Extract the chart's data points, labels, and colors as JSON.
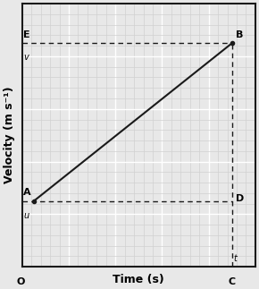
{
  "title": "",
  "xlabel": "Time (s)",
  "ylabel": "Velocity (m s⁻¹)",
  "xlim": [
    0,
    10
  ],
  "ylim": [
    0,
    10
  ],
  "line_x": [
    0.5,
    9.0
  ],
  "line_y": [
    2.5,
    8.5
  ],
  "dashed_h_u_y": 2.5,
  "dashed_h_v_y": 8.5,
  "dashed_v_x": 9.0,
  "point_A": [
    0.5,
    2.5
  ],
  "point_B": [
    9.0,
    8.5
  ],
  "point_E_x": 0.5,
  "point_D_x": 9.0,
  "label_O": "O",
  "label_A": "A",
  "label_B": "B",
  "label_D": "D",
  "label_E": "E",
  "label_u": "u",
  "label_v": "v",
  "label_t": "t",
  "label_C": "C",
  "bg_color": "#e8e8e8",
  "grid_major_color": "#ffffff",
  "grid_minor_color": "#d0d0d0",
  "line_color": "#1a1a1a",
  "dashed_color": "#1a1a1a",
  "font_size_axis_label": 9,
  "font_size_point_label": 8,
  "major_grid_n": 5,
  "minor_grid_n": 25
}
